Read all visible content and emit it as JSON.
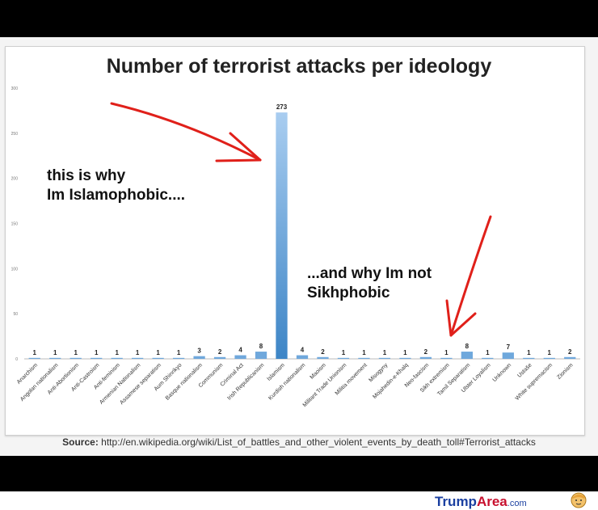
{
  "chart_data": {
    "type": "bar",
    "title": "Number of terrorist attacks per ideology",
    "ylim": [
      0,
      300
    ],
    "yticks": [
      0,
      50,
      100,
      150,
      200,
      250,
      300
    ],
    "categories": [
      "Anarchism",
      "Angolan nationalism",
      "Anti-Abortionism",
      "Anti-Castroism",
      "Anti-feminism",
      "Armenian Nationalism",
      "Assamese separatism",
      "Aum Shinrikyo",
      "Basque nationalism",
      "Communism",
      "Criminal Act",
      "Irish Republicanism",
      "Islamism",
      "Kurdish nationalism",
      "Maoism",
      "Militant Trade Unionism",
      "Militia movement",
      "Misogyny",
      "Mojahedin-e-Khalq",
      "Neo-fascism",
      "Sikh extremism",
      "Tamil Separatism",
      "Ulster Loyalism",
      "Unknown",
      "Ustaše",
      "White supremacism",
      "Zionism"
    ],
    "values": [
      1,
      1,
      1,
      1,
      1,
      1,
      1,
      1,
      3,
      2,
      4,
      8,
      273,
      4,
      2,
      1,
      1,
      1,
      1,
      2,
      1,
      8,
      1,
      7,
      1,
      1,
      2
    ],
    "bar_color": "#6fa8dc",
    "highlight_color": "#3d85c6",
    "source_label": "Source:",
    "source_url": "http://en.wikipedia.org/wiki/List_of_battles_and_other_violent_events_by_death_toll#Terrorist_attacks"
  },
  "annotations": {
    "left_line1": "this is why",
    "left_line2": "Im Islamophobic....",
    "right_line1": "...and why Im not",
    "right_line2": "Sikhphobic",
    "arrow_color": "#e0201a"
  },
  "footer": {
    "brand_main": "Trump",
    "brand_accent": "Area",
    "brand_suffix": ".com"
  }
}
